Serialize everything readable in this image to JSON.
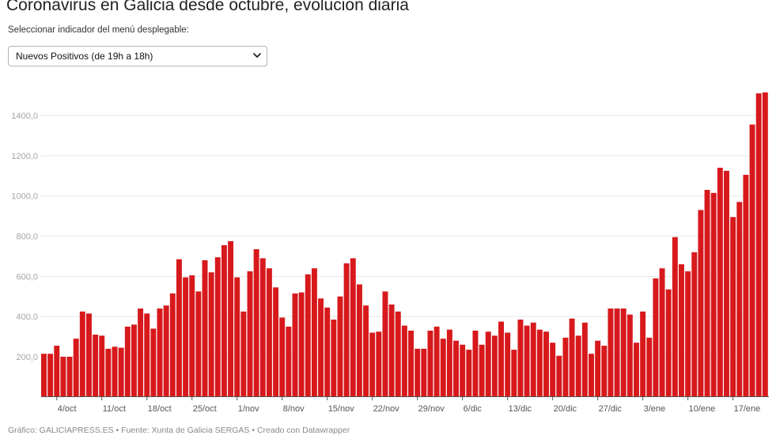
{
  "title": "Coronavirus en Galicia desde octubre, evolución diaria",
  "dropdown": {
    "label": "Seleccionar indicador del menú desplegable:",
    "selected": "Nuevos Positivos (de 19h a 18h)"
  },
  "footer": {
    "grafico": "Gráfico: GALICIAPRESS.ES",
    "sep1": " • ",
    "fuente": "Fuente: Xunta de Galicia SERGAS",
    "sep2": " • ",
    "creado": "Creado con Datawrapper"
  },
  "chart_data": {
    "type": "bar",
    "bar_color": "#d7191c",
    "grid": true,
    "ylim": [
      0,
      1550
    ],
    "y_ticks": [
      200,
      400,
      600,
      800,
      1000,
      1200,
      1400
    ],
    "y_tick_labels": [
      "200,0",
      "400,0",
      "600,0",
      "800,0",
      "1000,0",
      "1200,0",
      "1400,0"
    ],
    "x_tick_labels": [
      {
        "index": 2,
        "label": "4/oct"
      },
      {
        "index": 9,
        "label": "11/oct"
      },
      {
        "index": 16,
        "label": "18/oct"
      },
      {
        "index": 23,
        "label": "25/oct"
      },
      {
        "index": 30,
        "label": "1/nov"
      },
      {
        "index": 37,
        "label": "8/nov"
      },
      {
        "index": 44,
        "label": "15/nov"
      },
      {
        "index": 51,
        "label": "22/nov"
      },
      {
        "index": 58,
        "label": "29/nov"
      },
      {
        "index": 65,
        "label": "6/dic"
      },
      {
        "index": 72,
        "label": "13/dic"
      },
      {
        "index": 79,
        "label": "20/dic"
      },
      {
        "index": 86,
        "label": "27/dic"
      },
      {
        "index": 93,
        "label": "3/ene"
      },
      {
        "index": 100,
        "label": "10/ene"
      },
      {
        "index": 107,
        "label": "17/ene"
      }
    ],
    "values": [
      215,
      215,
      255,
      200,
      200,
      290,
      425,
      415,
      310,
      305,
      240,
      250,
      245,
      350,
      360,
      440,
      415,
      340,
      440,
      455,
      515,
      685,
      595,
      605,
      525,
      680,
      620,
      695,
      755,
      775,
      595,
      425,
      625,
      735,
      690,
      640,
      545,
      395,
      350,
      515,
      520,
      610,
      640,
      490,
      445,
      385,
      500,
      665,
      690,
      560,
      455,
      320,
      325,
      525,
      460,
      425,
      355,
      330,
      240,
      240,
      330,
      350,
      290,
      335,
      280,
      260,
      235,
      330,
      260,
      325,
      305,
      375,
      320,
      235,
      385,
      355,
      370,
      335,
      325,
      270,
      205,
      295,
      390,
      305,
      370,
      215,
      280,
      255,
      440,
      440,
      440,
      410,
      270,
      425,
      295,
      590,
      640,
      535,
      795,
      660,
      625,
      720,
      930,
      1030,
      1015,
      1140,
      1125,
      895,
      970,
      1105,
      1355,
      1510,
      1515
    ]
  }
}
